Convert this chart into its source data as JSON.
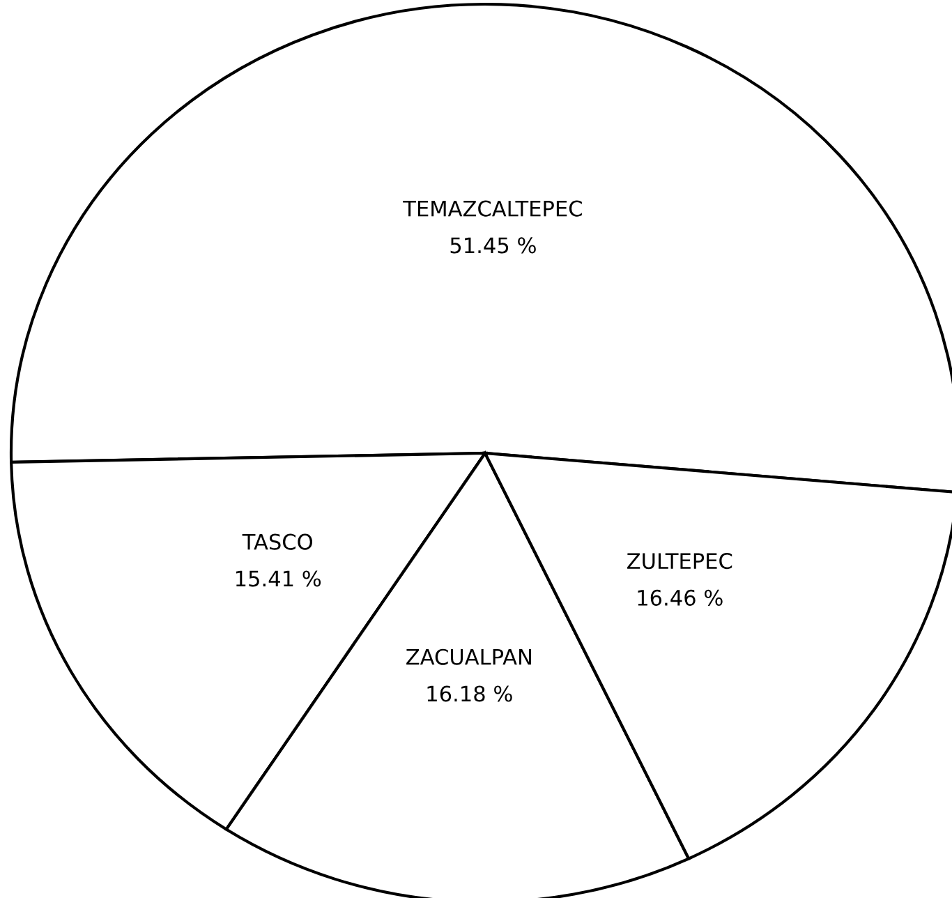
{
  "chart_data": {
    "type": "pie",
    "categories": [
      "TEMAZCALTEPEC",
      "TASCO",
      "ZACUALPAN",
      "ZULTEPEC"
    ],
    "values": [
      51.45,
      15.41,
      16.18,
      16.46
    ],
    "value_labels": [
      "51.45 %",
      "15.41 %",
      "16.18 %",
      "16.46 %"
    ],
    "colors": [
      "#ffffff",
      "#ffffff",
      "#ffffff",
      "#ffffff"
    ]
  }
}
